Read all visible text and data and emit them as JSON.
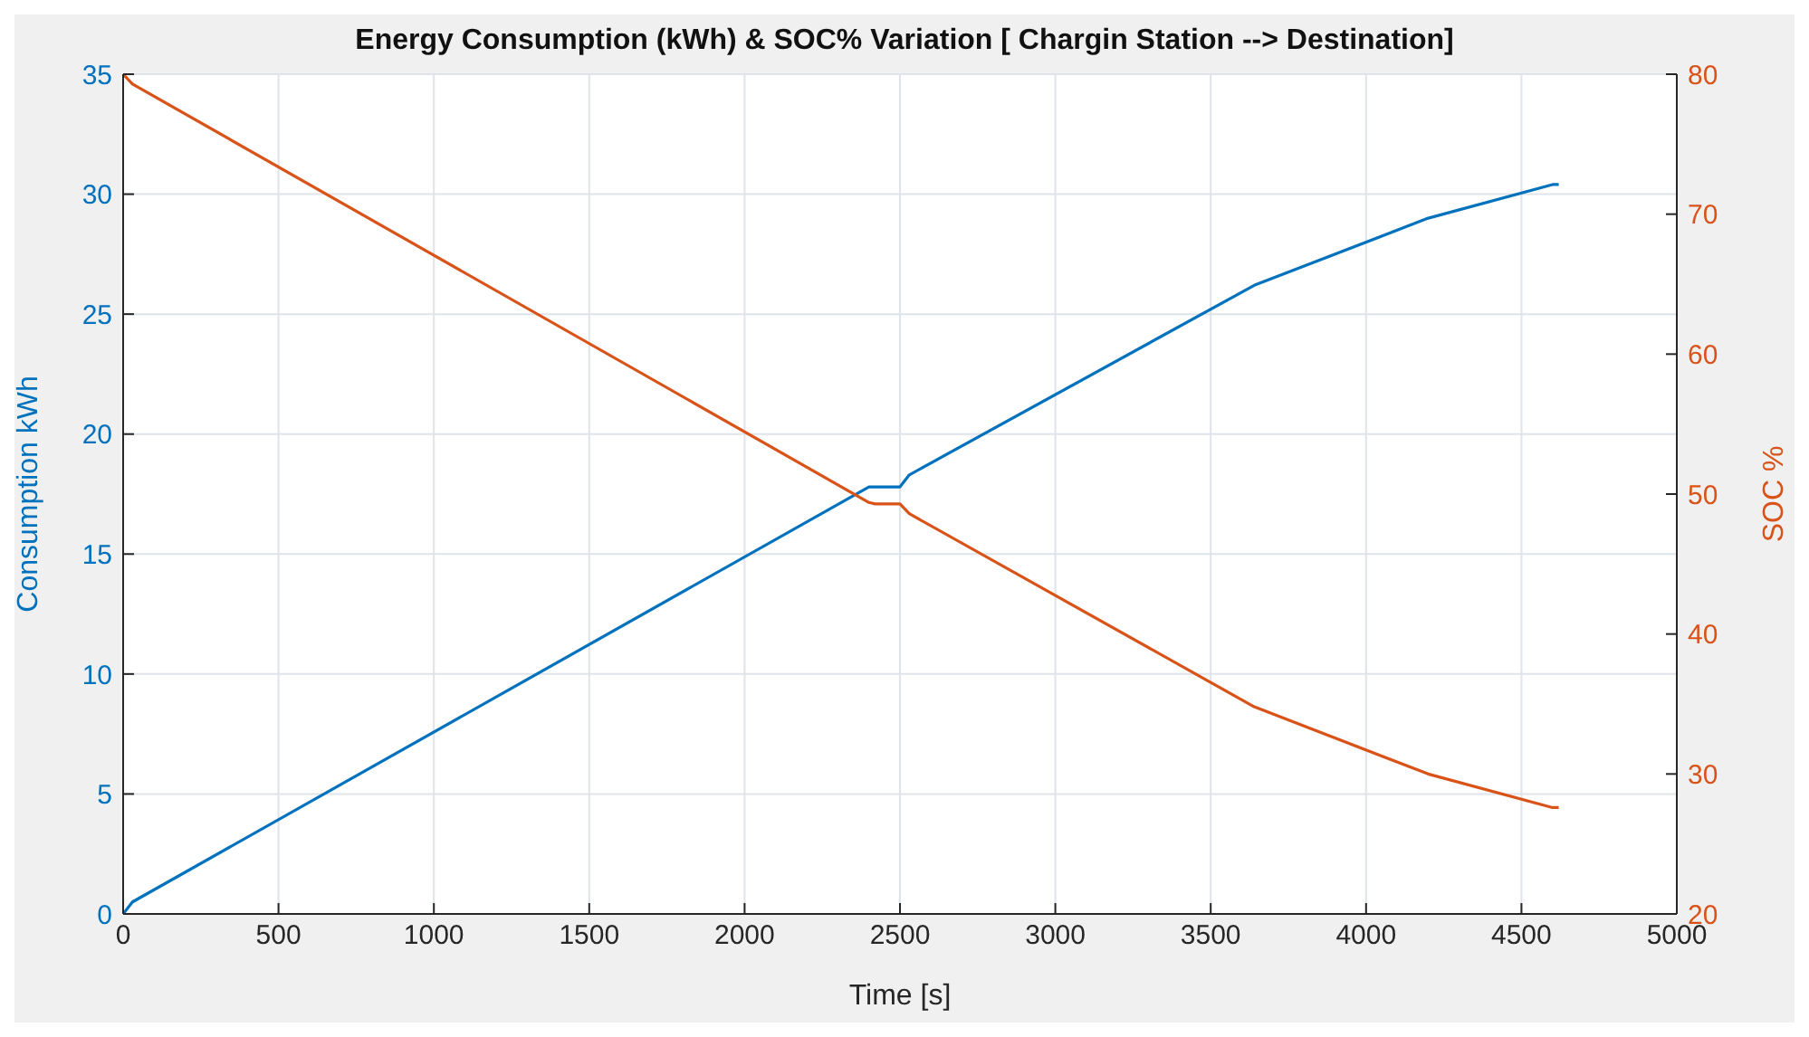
{
  "chart_data": {
    "type": "line",
    "title": "Energy Consumption (kWh) & SOC% Variation [ Chargin Station --> Destination]",
    "xlabel": "Time [s]",
    "ylabel": "Consumption kWh",
    "y2label": "SOC %",
    "x": [
      0,
      30,
      2400,
      2420,
      2500,
      2530,
      3640,
      4200,
      4600,
      4620
    ],
    "series": [
      {
        "name": null,
        "color": "#0072bd",
        "values": [
          0,
          0.5,
          17.8,
          17.8,
          17.8,
          18.3,
          26.2,
          29.0,
          30.4,
          30.4
        ]
      },
      {
        "name": null,
        "color": "#d95319",
        "axis": "y2",
        "values": [
          80,
          79.3,
          49.4,
          49.3,
          49.3,
          48.6,
          34.8,
          30.0,
          27.6,
          27.6
        ]
      }
    ],
    "xlim": [
      0,
      5000
    ],
    "xticks": [
      0,
      500,
      1000,
      1500,
      2000,
      2500,
      3000,
      3500,
      4000,
      4500,
      5000
    ],
    "ylim": [
      0,
      35
    ],
    "yticks": [
      0,
      5,
      10,
      15,
      20,
      25,
      30,
      35
    ],
    "y2lim": [
      20,
      80
    ],
    "y2ticks": [
      20,
      30,
      40,
      50,
      60,
      70,
      80
    ],
    "grid": true
  }
}
